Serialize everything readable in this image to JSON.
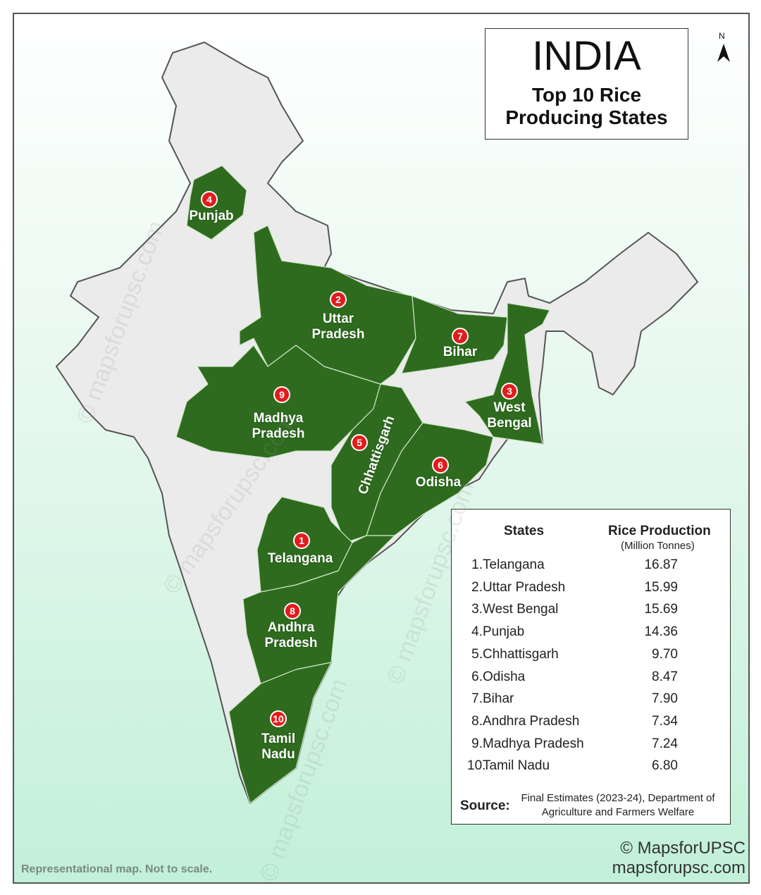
{
  "title": "INDIA",
  "subtitle": "Top 10 Rice Producing States",
  "north": "N",
  "map_labels": [
    {
      "rank": "1",
      "name": "Telangana"
    },
    {
      "rank": "2",
      "name": "Uttar Pradesh"
    },
    {
      "rank": "3",
      "name": "West Bengal"
    },
    {
      "rank": "4",
      "name": "Punjab"
    },
    {
      "rank": "5",
      "name": "Chhattisgarh"
    },
    {
      "rank": "6",
      "name": "Odisha"
    },
    {
      "rank": "7",
      "name": "Bihar"
    },
    {
      "rank": "8",
      "name": "Andhra Pradesh"
    },
    {
      "rank": "9",
      "name": "Madhya Pradesh"
    },
    {
      "rank": "10",
      "name": "Tamil Nadu"
    }
  ],
  "table": {
    "headers": [
      "States",
      "Rice Production"
    ],
    "unit": "(Million Tonnes)",
    "rows": [
      [
        "1.",
        "Telangana",
        "16.87"
      ],
      [
        "2.",
        "Uttar Pradesh",
        "15.99"
      ],
      [
        "3.",
        "West Bengal",
        "15.69"
      ],
      [
        "4.",
        "Punjab",
        "14.36"
      ],
      [
        "5.",
        "Chhattisgarh",
        "9.70"
      ],
      [
        "6.",
        "Odisha",
        "8.47"
      ],
      [
        "7.",
        "Bihar",
        "7.90"
      ],
      [
        "8.",
        "Andhra Pradesh",
        "7.34"
      ],
      [
        "9.",
        "Madhya Pradesh",
        "7.24"
      ],
      [
        "10.",
        "Tamil Nadu",
        "6.80"
      ]
    ],
    "source_label": "Source:",
    "source_text": "Final Estimates (2023-24), Department of Agriculture and Farmers Welfare"
  },
  "copyright": "© MapsforUPSC",
  "website": "mapsforupsc.com",
  "note": "Representational map. Not to scale.",
  "watermark": "© mapsforupsc.com"
}
